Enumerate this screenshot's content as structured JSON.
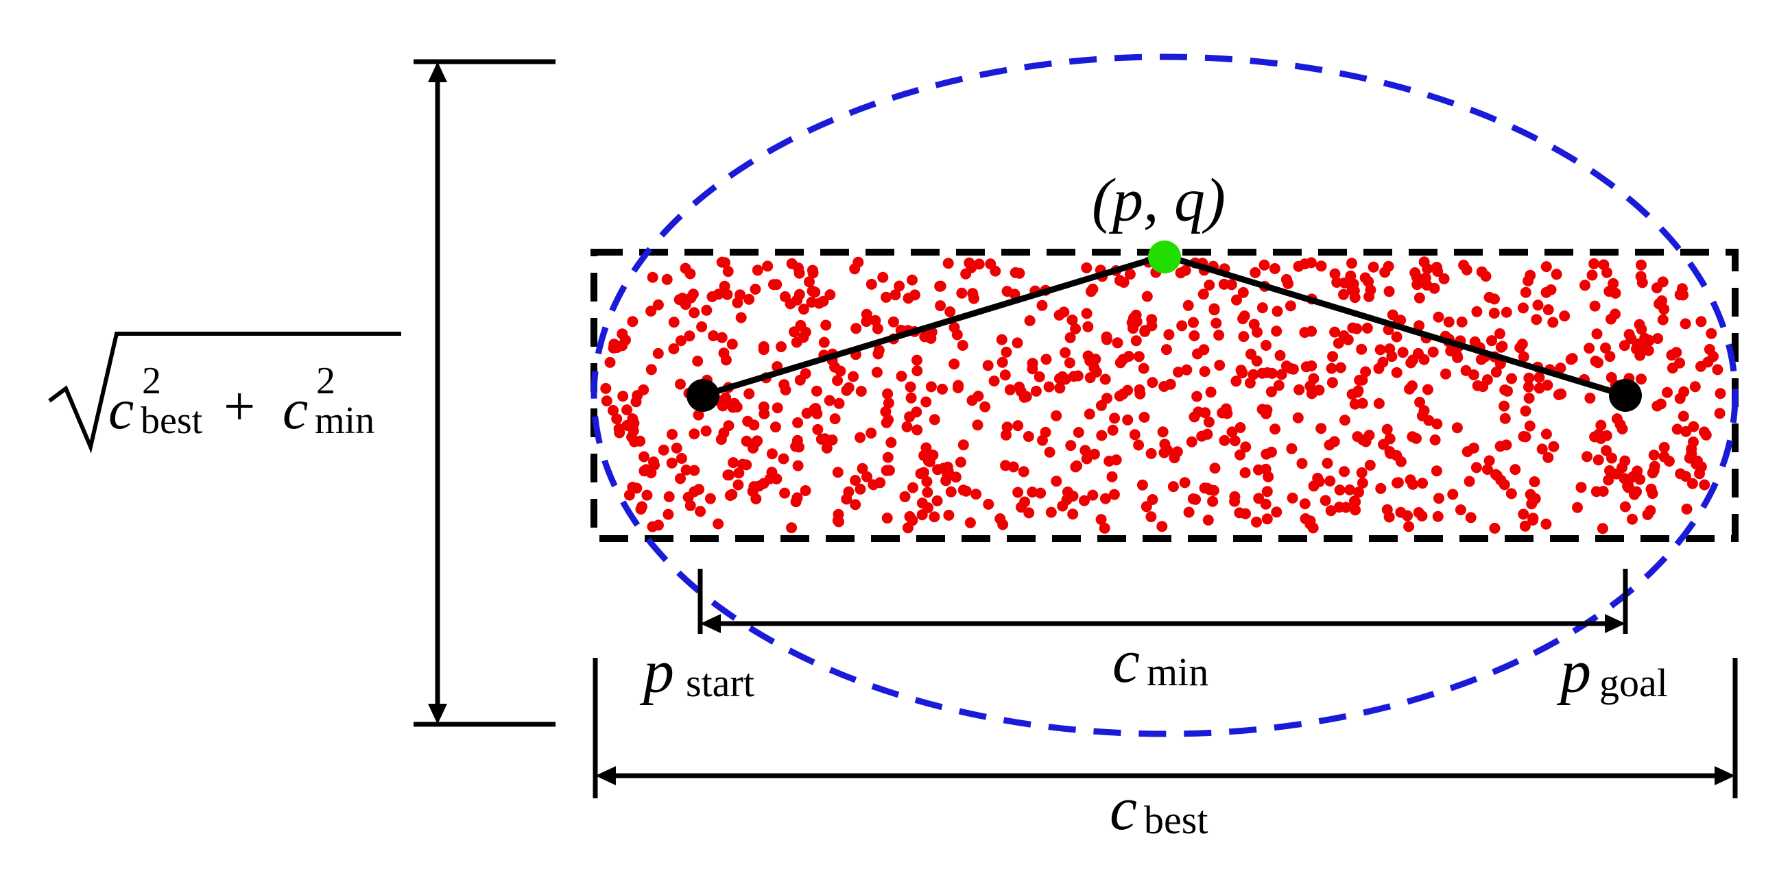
{
  "diagram": {
    "labels": {
      "sqrt_term1_base": "c",
      "sqrt_term1_sup": "2",
      "sqrt_term1_sub": "best",
      "sqrt_plus": "+",
      "sqrt_term2_base": "c",
      "sqrt_term2_sup": "2",
      "sqrt_term2_sub": "min",
      "pq_label": "(p, q)",
      "pstart_base": "p",
      "pstart_sub": "start",
      "pgoal_base": "p",
      "pgoal_sub": "goal",
      "cmin_base": "c",
      "cmin_sub": "min",
      "cbest_base": "c",
      "cbest_sub": "best"
    },
    "colors": {
      "ellipse": "#1a1ad9",
      "samples": "#ee0000",
      "midpoint": "#22dd00",
      "lines": "#000000"
    },
    "sample_count": 1000
  }
}
